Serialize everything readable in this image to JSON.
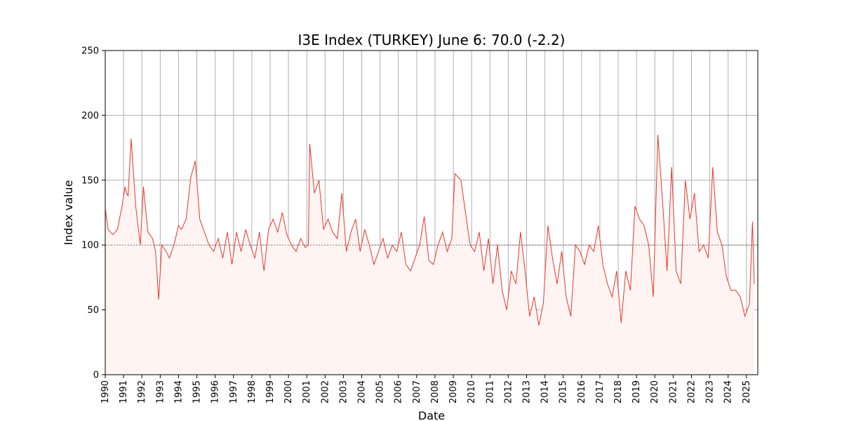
{
  "chart_data": {
    "type": "line",
    "title": "I3E Index (TURKEY) June 6: 70.0 (-2.2)",
    "xlabel": "Date",
    "ylabel": "Index value",
    "ylim": [
      0,
      250
    ],
    "yticks": [
      0,
      50,
      100,
      150,
      200,
      250
    ],
    "xlim": [
      "1990-01-01",
      "2025-08-15"
    ],
    "xticks": [
      "1990",
      "1991",
      "1992",
      "1993",
      "1994",
      "1995",
      "1996",
      "1997",
      "1998",
      "1999",
      "2000",
      "2001",
      "2002",
      "2003",
      "2004",
      "2005",
      "2006",
      "2007",
      "2008",
      "2009",
      "2010",
      "2011",
      "2012",
      "2013",
      "2014",
      "2015",
      "2016",
      "2017",
      "2018",
      "2019",
      "2020",
      "2021",
      "2022",
      "2023",
      "2024",
      "2025"
    ],
    "reference_line": 100,
    "grid": true,
    "line_color": "#e8372c",
    "fill_color": "#fff4f2",
    "reference_color": "#777777",
    "series": [
      {
        "x": [
          "1990-01-01",
          "1990-03-01",
          "1990-06-01",
          "1990-09-01",
          "1990-12-01",
          "1991-02-01",
          "1991-03-01",
          "1991-04-01",
          "1991-06-01",
          "1991-09-01",
          "1991-12-01",
          "1992-02-01",
          "1992-05-01",
          "1992-08-01",
          "1992-10-01",
          "1992-12-01",
          "1993-02-01",
          "1993-05-01",
          "1993-07-01",
          "1993-10-01",
          "1994-01-01",
          "1994-03-01",
          "1994-06-01",
          "1994-09-01",
          "1994-12-01",
          "1995-03-01",
          "1995-06-01",
          "1995-09-01",
          "1995-12-01",
          "1996-03-01",
          "1996-06-01",
          "1996-09-01",
          "1996-12-01",
          "1997-03-01",
          "1997-06-01",
          "1997-09-01",
          "1997-12-01",
          "1998-03-01",
          "1998-06-01",
          "1998-09-01",
          "1998-12-01",
          "1999-03-01",
          "1999-06-01",
          "1999-09-01",
          "1999-12-01",
          "2000-03-01",
          "2000-06-01",
          "2000-09-01",
          "2000-12-01",
          "2001-02-01",
          "2001-03-01",
          "2001-06-01",
          "2001-09-01",
          "2001-12-01",
          "2002-03-01",
          "2002-06-01",
          "2002-09-01",
          "2002-12-01",
          "2003-03-01",
          "2003-06-01",
          "2003-09-01",
          "2003-12-01",
          "2004-03-01",
          "2004-06-01",
          "2004-09-01",
          "2004-12-01",
          "2005-03-01",
          "2005-06-01",
          "2005-09-01",
          "2005-12-01",
          "2006-03-01",
          "2006-06-01",
          "2006-09-01",
          "2006-12-01",
          "2007-03-01",
          "2007-06-01",
          "2007-09-01",
          "2007-12-01",
          "2008-03-01",
          "2008-06-01",
          "2008-09-01",
          "2008-12-01",
          "2009-02-01",
          "2009-06-01",
          "2009-09-01",
          "2009-12-01",
          "2010-03-01",
          "2010-06-01",
          "2010-09-01",
          "2010-12-01",
          "2011-03-01",
          "2011-06-01",
          "2011-09-01",
          "2011-12-01",
          "2012-03-01",
          "2012-06-01",
          "2012-09-01",
          "2012-12-01",
          "2013-03-01",
          "2013-06-01",
          "2013-09-01",
          "2013-12-01",
          "2014-03-01",
          "2014-06-01",
          "2014-09-01",
          "2014-12-01",
          "2015-03-01",
          "2015-06-01",
          "2015-09-01",
          "2015-12-01",
          "2016-03-01",
          "2016-06-01",
          "2016-09-01",
          "2016-12-01",
          "2017-03-01",
          "2017-06-01",
          "2017-09-01",
          "2017-12-01",
          "2018-03-01",
          "2018-06-01",
          "2018-09-01",
          "2018-12-01",
          "2019-03-01",
          "2019-06-01",
          "2019-09-01",
          "2019-12-01",
          "2020-03-01",
          "2020-06-01",
          "2020-09-01",
          "2020-12-01",
          "2021-03-01",
          "2021-06-01",
          "2021-09-01",
          "2021-12-01",
          "2022-03-01",
          "2022-06-01",
          "2022-09-01",
          "2022-12-01",
          "2023-03-01",
          "2023-06-01",
          "2023-09-01",
          "2023-12-01",
          "2024-03-01",
          "2024-06-01",
          "2024-09-01",
          "2024-12-01",
          "2025-03-01",
          "2025-05-01",
          "2025-06-06"
        ],
        "y": [
          128,
          112,
          108,
          112,
          130,
          145,
          140,
          138,
          182,
          130,
          100,
          145,
          110,
          105,
          95,
          58,
          100,
          95,
          90,
          100,
          115,
          112,
          120,
          152,
          165,
          120,
          110,
          100,
          95,
          105,
          90,
          110,
          85,
          110,
          95,
          112,
          100,
          90,
          110,
          80,
          112,
          120,
          110,
          125,
          108,
          100,
          95,
          105,
          98,
          100,
          178,
          140,
          150,
          112,
          120,
          110,
          105,
          140,
          95,
          110,
          120,
          95,
          112,
          100,
          85,
          95,
          105,
          90,
          100,
          95,
          110,
          85,
          80,
          90,
          100,
          122,
          88,
          85,
          100,
          110,
          95,
          105,
          155,
          150,
          125,
          100,
          95,
          110,
          80,
          105,
          70,
          100,
          65,
          50,
          80,
          70,
          110,
          80,
          45,
          60,
          38,
          55,
          115,
          90,
          70,
          95,
          60,
          45,
          100,
          95,
          85,
          100,
          95,
          115,
          85,
          70,
          60,
          80,
          40,
          80,
          65,
          130,
          120,
          115,
          100,
          60,
          185,
          135,
          80,
          160,
          80,
          70,
          150,
          120,
          140,
          95,
          100,
          90,
          160,
          110,
          100,
          75,
          65,
          65,
          60,
          45,
          55,
          118,
          70
        ]
      }
    ]
  }
}
